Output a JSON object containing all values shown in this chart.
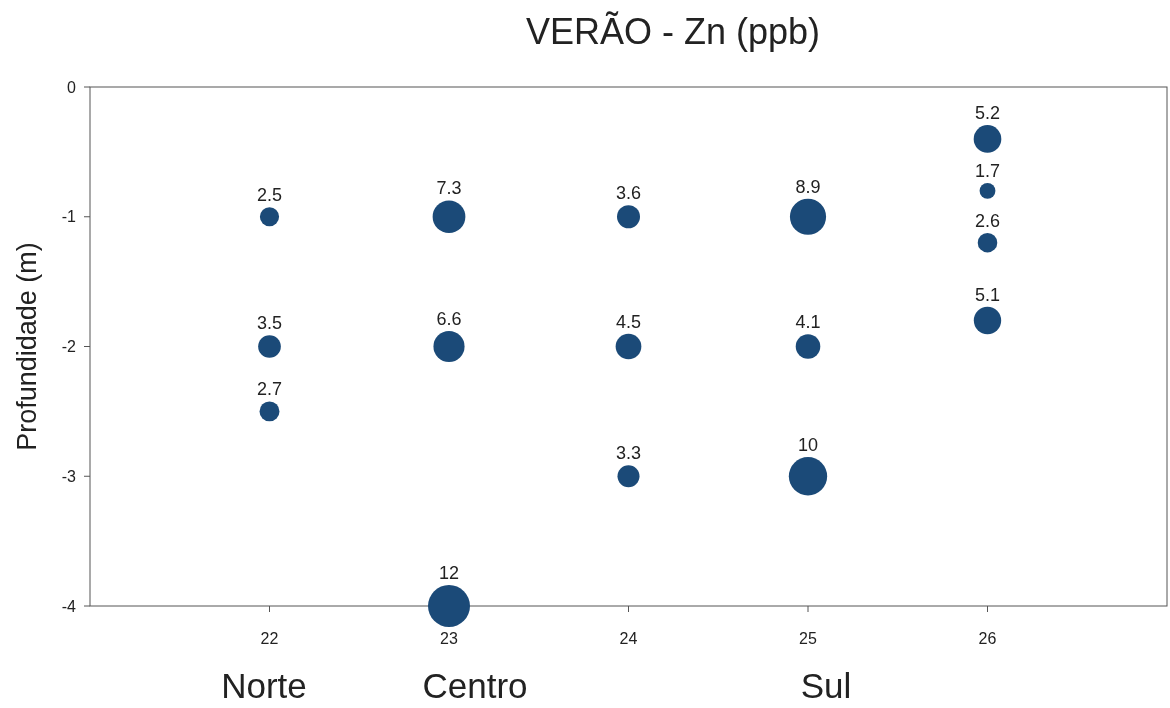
{
  "chart_data": {
    "type": "bubble",
    "title": "VERÃO - Zn (ppb)",
    "ylabel": "Profundidade (m)",
    "x": [
      22,
      22,
      22,
      23,
      23,
      23,
      24,
      24,
      24,
      25,
      25,
      25,
      26,
      26,
      26,
      26
    ],
    "values": [
      -1,
      -2,
      -2.5,
      -1,
      -2,
      -4,
      -1,
      -2,
      -3,
      -1,
      -2,
      -3,
      -0.4,
      -0.8,
      -1.2,
      -1.8
    ],
    "sizes": [
      0.208,
      0.292,
      0.225,
      0.608,
      0.55,
      1,
      0.3,
      0.375,
      0.275,
      0.742,
      0.342,
      0.833,
      0.433,
      0.142,
      0.217,
      0.425
    ],
    "color": "#1b4a78",
    "xlim": [
      21,
      27
    ],
    "xticks": [
      22,
      23,
      24,
      25,
      26
    ],
    "ylim": [
      -4,
      0
    ],
    "yticks": [
      0,
      -1,
      -2,
      -3,
      -4
    ],
    "annotations": [
      "Norte",
      "Centro",
      "Sul",
      {
        "text": "2.5",
        "x": 22,
        "y": -1
      },
      {
        "text": "3.5",
        "x": 22,
        "y": -2
      },
      {
        "text": "2.7",
        "x": 22,
        "y": -2.5
      },
      {
        "text": "7.3",
        "x": 23,
        "y": -1
      },
      {
        "text": "6.6",
        "x": 23,
        "y": -2
      },
      {
        "text": "12",
        "x": 23,
        "y": -4
      },
      {
        "text": "3.6",
        "x": 24,
        "y": -1
      },
      {
        "text": "4.5",
        "x": 24,
        "y": -2
      },
      {
        "text": "3.3",
        "x": 24,
        "y": -3
      },
      {
        "text": "8.9",
        "x": 25,
        "y": -1
      },
      {
        "text": "4.1",
        "x": 25,
        "y": -2
      },
      {
        "text": "10",
        "x": 25,
        "y": -3
      },
      {
        "text": "5.2",
        "x": 26,
        "y": -0.4
      },
      {
        "text": "1.7",
        "x": 26,
        "y": -0.8
      },
      {
        "text": "2.6",
        "x": 26,
        "y": -1.2
      },
      {
        "text": "5.1",
        "x": 26,
        "y": -1.8
      }
    ]
  }
}
